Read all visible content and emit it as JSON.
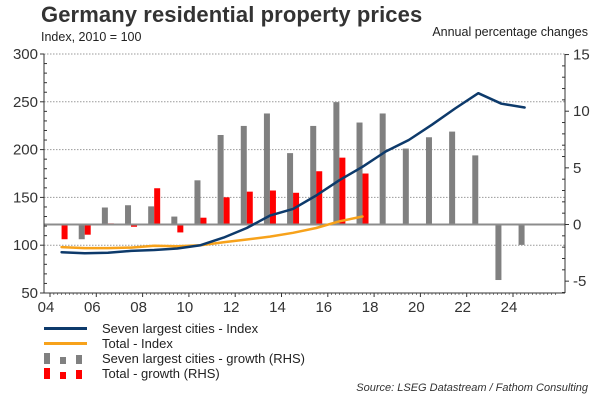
{
  "chart_data": {
    "type": "bar+line",
    "title": "Germany residential property prices",
    "lhs_label": "Index, 2010 = 100",
    "rhs_label": "Annual percentage changes",
    "xlabel": "",
    "x_tick_labels": [
      "04",
      "06",
      "08",
      "10",
      "12",
      "14",
      "16",
      "18",
      "20",
      "22",
      "24"
    ],
    "x_ticks": [
      2004,
      2006,
      2008,
      2010,
      2012,
      2014,
      2016,
      2018,
      2020,
      2022,
      2024
    ],
    "xlim": [
      2004,
      2026
    ],
    "left_axis": {
      "ylim": [
        50,
        300
      ],
      "ticks": [
        50,
        100,
        150,
        200,
        250,
        300
      ]
    },
    "right_axis": {
      "ylim": [
        -6,
        15
      ],
      "ticks": [
        -5,
        0,
        5,
        10,
        15
      ]
    },
    "grid": true,
    "years": [
      2004,
      2005,
      2006,
      2007,
      2008,
      2009,
      2010,
      2011,
      2012,
      2013,
      2014,
      2015,
      2016,
      2017,
      2018,
      2019,
      2020,
      2021,
      2022,
      2023,
      2024
    ],
    "series": [
      {
        "name": "Seven largest cities - Index",
        "type": "line",
        "axis": "left",
        "color": "#0d3a6b",
        "values": [
          92.7,
          91.5,
          92,
          94,
          95,
          96.5,
          100,
          108,
          118,
          131,
          138,
          152,
          168,
          182,
          198,
          210,
          226,
          243,
          259,
          248,
          244
        ]
      },
      {
        "name": "Total - Index",
        "type": "line",
        "axis": "left",
        "color": "#f7a21b",
        "values": [
          98,
          97,
          97,
          97.5,
          99.5,
          99,
          100,
          103,
          106,
          109,
          113,
          118,
          125,
          130,
          null,
          null,
          null,
          null,
          null,
          null,
          null
        ]
      },
      {
        "name": "Seven largest cities - growth (RHS)",
        "type": "bar",
        "axis": "right",
        "color": "#808080",
        "values": [
          null,
          -1.3,
          1.5,
          1.7,
          1.6,
          0.7,
          3.9,
          7.9,
          8.7,
          9.8,
          6.3,
          8.7,
          10.8,
          9.0,
          9.8,
          6.7,
          7.7,
          8.2,
          6.1,
          -4.9,
          -1.8
        ]
      },
      {
        "name": "Total - growth (RHS)",
        "type": "bar",
        "axis": "right",
        "color": "#ff0000",
        "values": [
          -1.3,
          -0.9,
          0.1,
          -0.2,
          3.2,
          -0.7,
          0.6,
          2.4,
          2.9,
          3.0,
          2.8,
          4.7,
          5.9,
          4.5,
          null,
          null,
          null,
          null,
          null,
          null,
          null
        ]
      }
    ],
    "legend_position": "bottom-left",
    "source": "Source: LSEG Datastream / Fathom Consulting"
  },
  "legend": [
    {
      "label": "Seven largest cities - Index",
      "kind": "line",
      "color": "#0d3a6b"
    },
    {
      "label": "Total - Index",
      "kind": "line",
      "color": "#f7a21b"
    },
    {
      "label": "Seven largest cities - growth (RHS)",
      "kind": "bars",
      "color": "#808080"
    },
    {
      "label": "Total - growth (RHS)",
      "kind": "bars",
      "color": "#ff0000"
    }
  ],
  "colors": {
    "axis": "#333333",
    "gridline": "#9a9a9a",
    "zero_line": "#8c8c8c"
  }
}
